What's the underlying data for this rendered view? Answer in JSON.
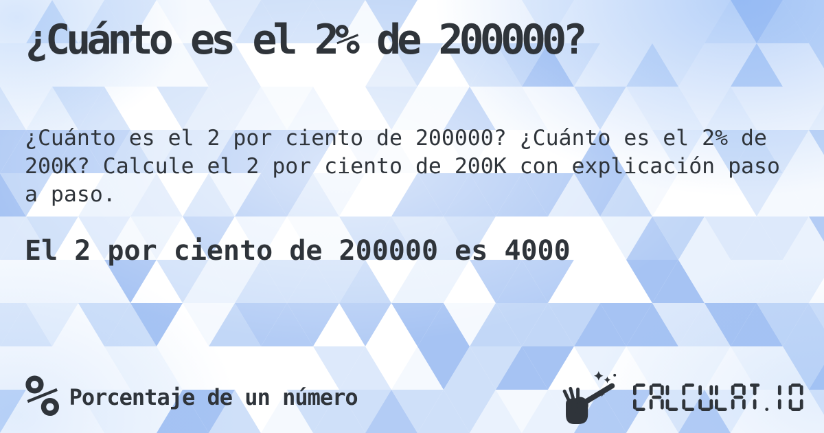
{
  "page": {
    "title": "¿Cuánto es el 2% de 200000?",
    "description": "¿Cuánto es el 2 por ciento de 200000? ¿Cuánto es el 2% de 200K? Calcule el 2 por ciento de 200K con explicación paso a paso.",
    "result": "El 2 por ciento de 200000 es 4000"
  },
  "footer": {
    "category_icon": "percent-icon",
    "category_icon_glyph": "%",
    "category_label": "Porcentaje de un número",
    "brand": {
      "logo_icon": "magic-wand-hand-icon",
      "logotype": "CALCULAT.IO"
    }
  },
  "theme": {
    "text_color": "#2f343a",
    "background_base": "#ffffff",
    "background_palette": [
      "#ffffff",
      "#f5f9fe",
      "#eaf2fd",
      "#dde9fb",
      "#cfe0f9",
      "#c2d7f7",
      "#b3ccf5",
      "#a6c3f3"
    ],
    "accent_blue": "#a6c3f3"
  }
}
